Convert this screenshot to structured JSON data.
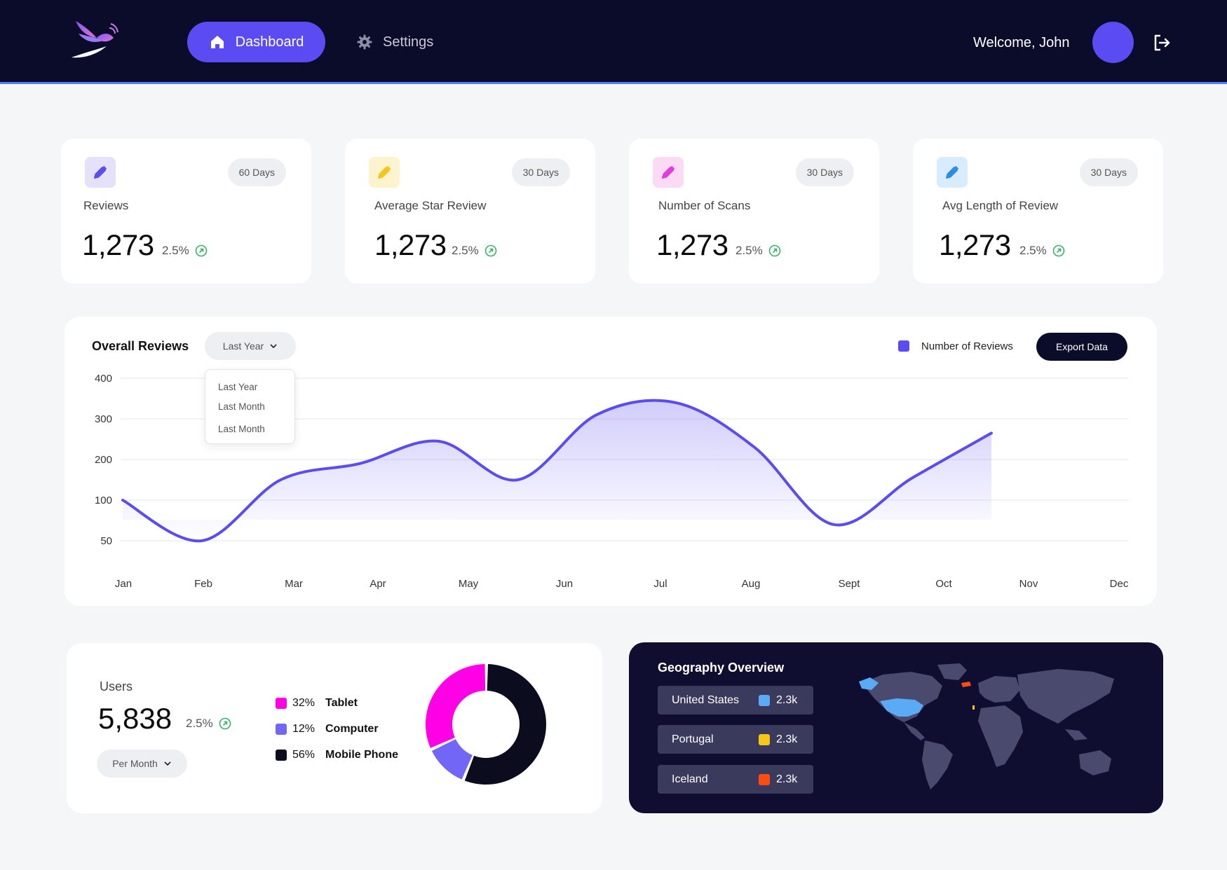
{
  "header": {
    "nav": [
      {
        "label": "Dashboard",
        "icon": "home-icon",
        "active": true
      },
      {
        "label": "Settings",
        "icon": "gear-icon",
        "active": false
      }
    ],
    "welcome": "Welcome, John",
    "colors": {
      "bar": "#0b0c2a",
      "accent": "#5a4cf2"
    }
  },
  "stats": [
    {
      "label": "Reviews",
      "period": "60 Days",
      "value": "1,273",
      "change": "2.5%",
      "icon": "pencil-icon",
      "icon_color": "#5a4cf2",
      "icon_bg": "#e6e1fb"
    },
    {
      "label": "Average Star Review",
      "period": "30 Days",
      "value": "1,273",
      "change": "2.5%",
      "icon": "pencil-icon",
      "icon_color": "#f5c518",
      "icon_bg": "#fdf3cf"
    },
    {
      "label": "Number of Scans",
      "period": "30 Days",
      "value": "1,273",
      "change": "2.5%",
      "icon": "pencil-icon",
      "icon_color": "#e23bd8",
      "icon_bg": "#fbdaf6"
    },
    {
      "label": "Avg Length of Review",
      "period": "30 Days",
      "value": "1,273",
      "change": "2.5%",
      "icon": "pencil-icon",
      "icon_color": "#2b8de8",
      "icon_bg": "#d9ecfd"
    }
  ],
  "reviews": {
    "title": "Overall Reviews",
    "range_selected": "Last Year",
    "range_options": [
      "Last Year",
      "Last Month",
      "Last Month"
    ],
    "legend": "Number of Reviews",
    "export_label": "Export Data"
  },
  "chart_data": {
    "type": "area",
    "categories": [
      "Jan",
      "Feb",
      "Mar",
      "Apr",
      "May",
      "Jun",
      "Jul",
      "Aug",
      "Sept",
      "Oct",
      "Nov",
      "Dec"
    ],
    "series": [
      {
        "name": "Number of Reviews",
        "values": [
          100,
          50,
          150,
          190,
          245,
          150,
          310,
          340,
          230,
          70,
          155,
          265
        ]
      }
    ],
    "y_ticks": [
      400,
      300,
      200,
      100,
      50
    ],
    "ylim": [
      50,
      400
    ],
    "grid": true,
    "legend_position": "top-right",
    "color": "#5a4cf2"
  },
  "users": {
    "label": "Users",
    "value": "5,838",
    "change": "2.5%",
    "period": "Per Month",
    "devices": [
      {
        "pct": "32%",
        "name": "Tablet",
        "color": "#ff00e6",
        "share": 32
      },
      {
        "pct": "12%",
        "name": "Computer",
        "color": "#7166f5",
        "share": 12
      },
      {
        "pct": "56%",
        "name": "Mobile Phone",
        "color": "#0b0c1e",
        "share": 56
      }
    ]
  },
  "geography": {
    "title": "Geography Overview",
    "countries": [
      {
        "name": "United States",
        "value": "2.3k",
        "color": "#5aaaf5"
      },
      {
        "name": "Portugal",
        "value": "2.3k",
        "color": "#f5c518"
      },
      {
        "name": "Iceland",
        "value": "2.3k",
        "color": "#ff4c11"
      }
    ]
  }
}
